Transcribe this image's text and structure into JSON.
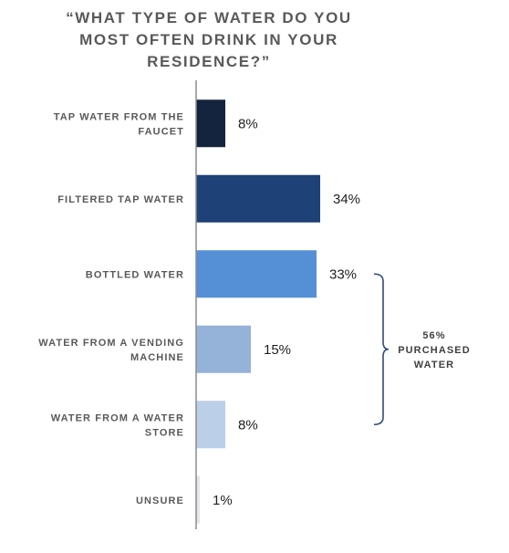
{
  "chart_data": {
    "type": "bar",
    "orientation": "horizontal",
    "title_lines": [
      "“WHAT TYPE OF WATER DO YOU",
      "MOST OFTEN DRINK IN YOUR",
      "RESIDENCE?”"
    ],
    "categories": [
      [
        "TAP WATER FROM THE",
        "FAUCET"
      ],
      [
        "FILTERED TAP WATER"
      ],
      [
        "BOTTLED WATER"
      ],
      [
        "WATER FROM A VENDING",
        "MACHINE"
      ],
      [
        "WATER FROM A WATER",
        "STORE"
      ],
      [
        "UNSURE"
      ]
    ],
    "values": [
      8,
      34,
      33,
      15,
      8,
      1
    ],
    "value_labels": [
      "8%",
      "34%",
      "33%",
      "15%",
      "8%",
      "1%"
    ],
    "bar_colors": [
      "#14243f",
      "#1e4177",
      "#5590d6",
      "#95b2d8",
      "#bccfe8",
      "#e4e6ea"
    ],
    "xlim": [
      0,
      40
    ],
    "grid": false,
    "legend": "none",
    "annotation": {
      "lines": [
        "56%",
        "PURCHASED",
        "WATER"
      ],
      "spans_categories": [
        2,
        4
      ],
      "bracket_color": "#2f4d7a"
    }
  }
}
